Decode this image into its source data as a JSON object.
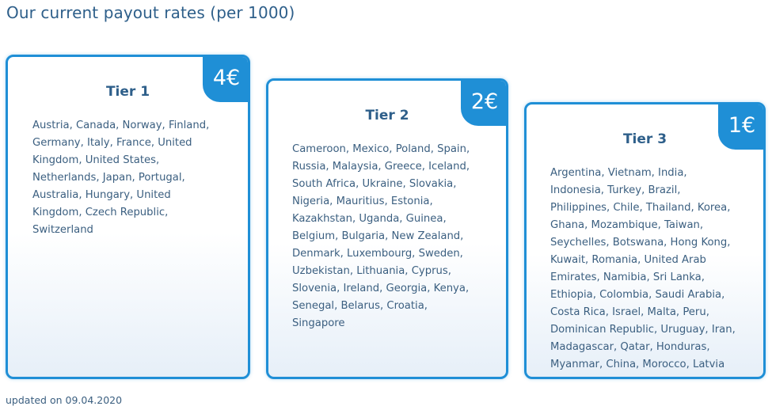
{
  "header": {
    "title": "Our current payout rates (per 1000)"
  },
  "tiers": [
    {
      "name": "Tier 1",
      "rate": "4€",
      "countries": "Austria, Canada, Norway, Finland, Germany, Italy, France, United Kingdom, United States, Netherlands, Japan, Portugal, Australia, Hungary, United Kingdom, Czech Republic, Switzerland"
    },
    {
      "name": "Tier 2",
      "rate": "2€",
      "countries": "Cameroon, Mexico, Poland, Spain, Russia, Malaysia, Greece, Iceland, South Africa, Ukraine, Slovakia, Nigeria, Mauritius, Estonia, Kazakhstan, Uganda, Guinea, Belgium, Bulgaria, New Zealand, Denmark, Luxembourg, Sweden, Uzbekistan, Lithuania, Cyprus, Slovenia, Ireland, Georgia, Kenya, Senegal, Belarus, Croatia, Singapore"
    },
    {
      "name": "Tier 3",
      "rate": "1€",
      "countries": "Argentina, Vietnam, India, Indonesia, Turkey, Brazil, Philippines, Chile, Thailand, Korea, Ghana, Mozambique, Taiwan, Seychelles, Botswana, Hong Kong, Kuwait, Romania, United Arab Emirates, Namibia, Sri Lanka, Ethiopia, Colombia, Saudi Arabia, Costa Rica, Israel, Malta, Peru, Dominican Republic, Uruguay, Iran, Madagascar, Qatar, Honduras, Myanmar, China, Morocco, Latvia"
    }
  ],
  "footer": {
    "updated": "updated on 09.04.2020"
  },
  "colors": {
    "accent": "#1f8fd6",
    "heading": "#2e5f8a",
    "text": "#3b5f80"
  }
}
